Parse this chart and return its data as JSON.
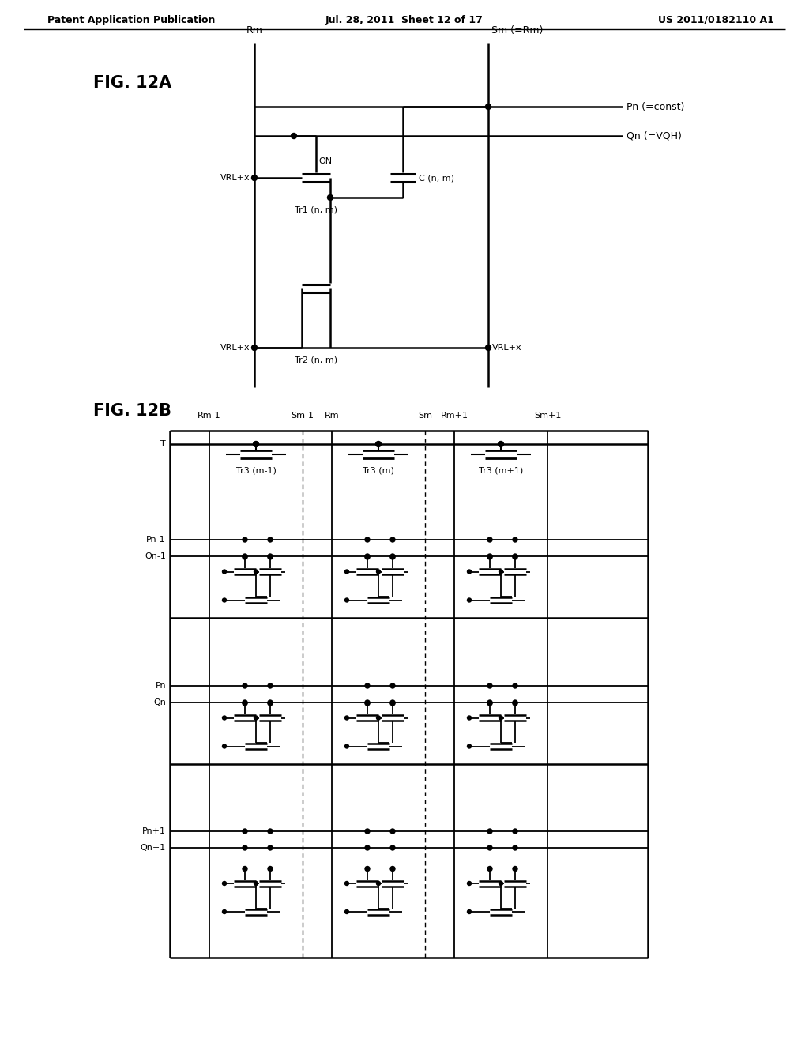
{
  "header_left": "Patent Application Publication",
  "header_mid": "Jul. 28, 2011  Sheet 12 of 17",
  "header_right": "US 2011/0182110 A1",
  "fig12a_label": "FIG. 12A",
  "fig12b_label": "FIG. 12B",
  "background_color": "#ffffff",
  "line_color": "#000000",
  "text_color": "#000000"
}
